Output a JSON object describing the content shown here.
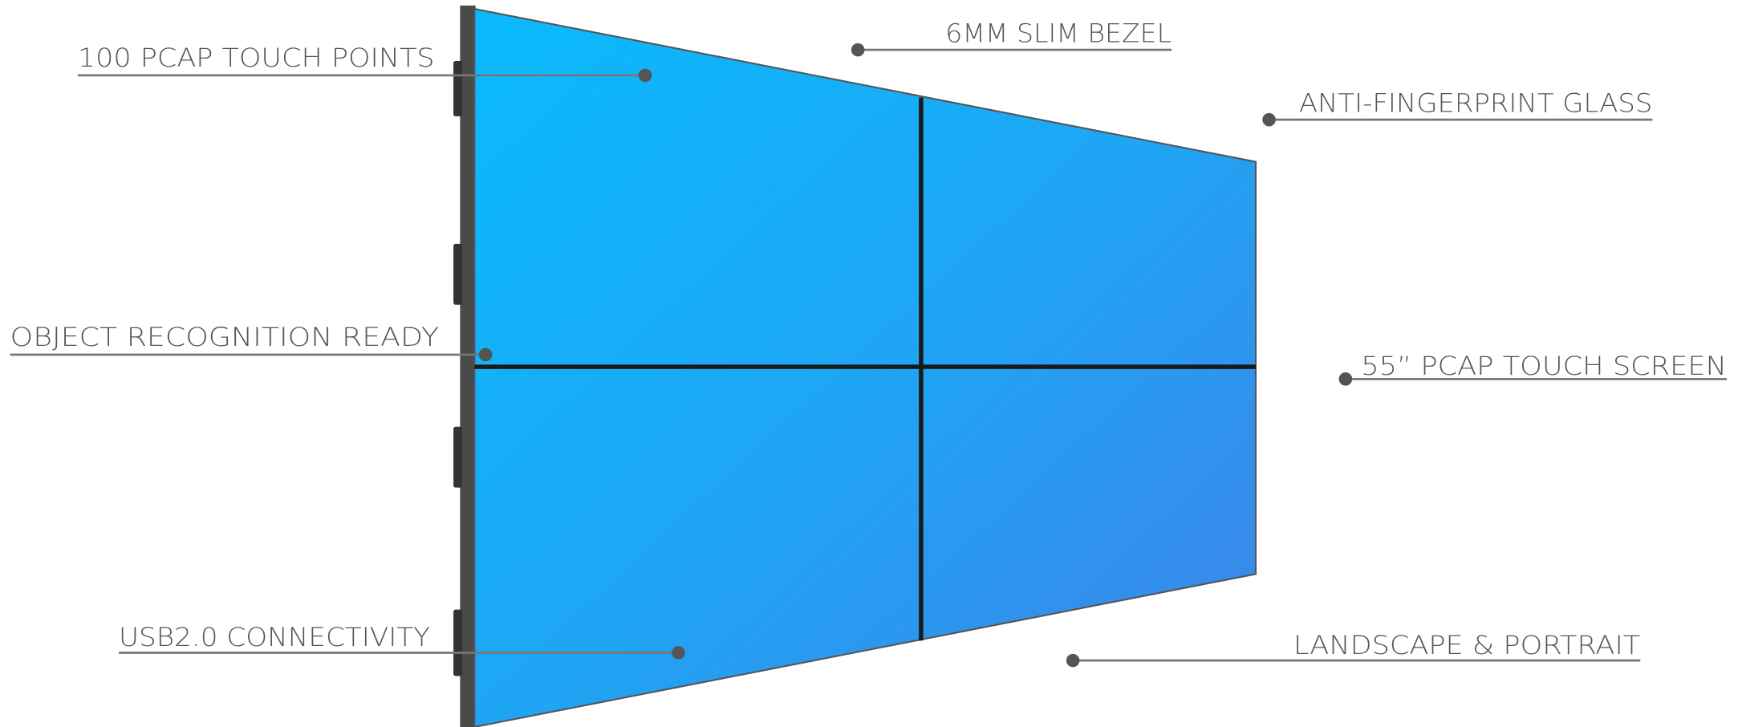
{
  "labels": [
    "100 PCAP TOUCH POINTS",
    "6MM SLIM BEZEL",
    "ANTI-FINGERPRINT GLASS",
    "OBJECT RECOGNITION READY",
    "55” PCAP TOUCH SCREEN",
    "USB2.0 CONNECTIVITY",
    "LANDSCAPE & PORTRAIT"
  ]
}
